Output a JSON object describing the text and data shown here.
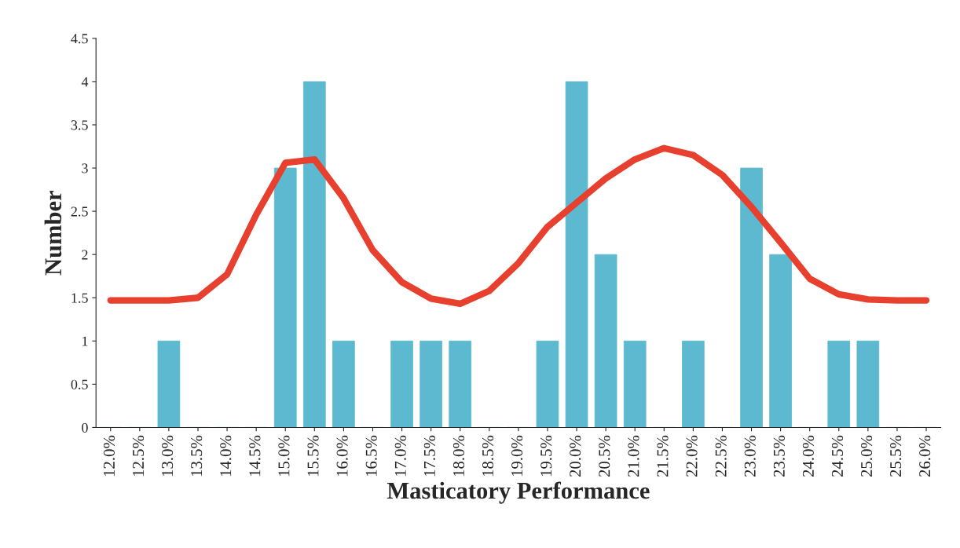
{
  "chart_data": {
    "type": "bar",
    "xlabel": "Masticatory Performance",
    "ylabel": "Number",
    "categories": [
      "12.0%",
      "12.5%",
      "13.0%",
      "13.5%",
      "14.0%",
      "14.5%",
      "15.0%",
      "15.5%",
      "16.0%",
      "16.5%",
      "17.0%",
      "17.5%",
      "18.0%",
      "18.5%",
      "19.0%",
      "19.5%",
      "20.0%",
      "20.5%",
      "21.0%",
      "21.5%",
      "22.0%",
      "22.5%",
      "23.0%",
      "23.5%",
      "24.0%",
      "24.5%",
      "25.0%",
      "25.5%",
      "26.0%"
    ],
    "series": [
      {
        "color": "#5db9cf",
        "values": [
          0,
          0,
          1,
          0,
          0,
          0,
          3,
          4,
          1,
          0,
          1,
          1,
          1,
          0,
          0,
          1,
          4,
          2,
          1,
          0,
          1,
          0,
          3,
          2,
          0,
          1,
          1,
          0,
          0
        ]
      },
      {
        "type": "line",
        "color": "#e8402f",
        "values": [
          1.47,
          1.47,
          1.47,
          1.5,
          1.77,
          2.46,
          3.06,
          3.1,
          2.65,
          2.05,
          1.68,
          1.49,
          1.43,
          1.58,
          1.9,
          2.32,
          2.6,
          2.88,
          3.1,
          3.23,
          3.15,
          2.92,
          2.55,
          2.14,
          1.72,
          1.54,
          1.48,
          1.47,
          1.47
        ]
      }
    ],
    "ylim": [
      0,
      4.5
    ],
    "yticks": [
      0,
      0.5,
      1,
      1.5,
      2,
      2.5,
      3,
      3.5,
      4,
      4.5
    ],
    "grid": false,
    "legend": false
  }
}
